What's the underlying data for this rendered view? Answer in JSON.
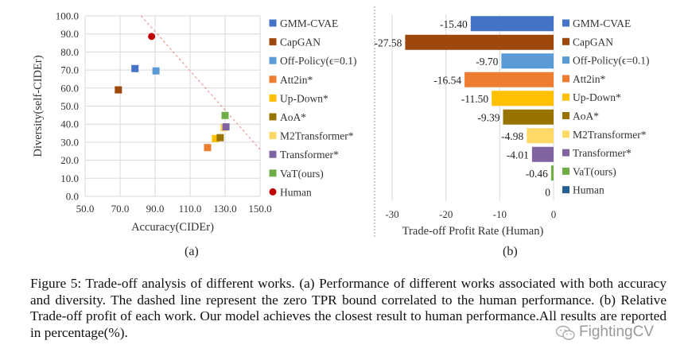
{
  "chart_data": [
    {
      "type": "scatter",
      "xlabel": "Accuracy(CIDEr)",
      "ylabel": "Diversity(self-CIDEr)",
      "xlim": [
        50,
        150
      ],
      "ylim": [
        0,
        100
      ],
      "xticks": [
        "50.0",
        "70.0",
        "90.0",
        "110.0",
        "130.0",
        "150.0"
      ],
      "yticks": [
        "0.0",
        "10.0",
        "20.0",
        "30.0",
        "40.0",
        "50.0",
        "60.0",
        "70.0",
        "80.0",
        "90.0",
        "100.0"
      ],
      "grid": true,
      "legend_position": "right",
      "zero_tpr_line": {
        "x": [
          82,
          150
        ],
        "y": [
          100,
          26
        ]
      },
      "series": [
        {
          "name": "GMM-CVAE",
          "x": 78.5,
          "y": 70.8,
          "color": "#4472C4",
          "marker": "square"
        },
        {
          "name": "CapGAN",
          "x": 69.0,
          "y": 59.0,
          "color": "#9E480E",
          "marker": "square"
        },
        {
          "name": "Off-Policy(ϵ=0.1)",
          "x": 90.5,
          "y": 69.5,
          "color": "#5B9BD5",
          "marker": "square"
        },
        {
          "name": "Att2in*",
          "x": 120.0,
          "y": 27.0,
          "color": "#ED7D31",
          "marker": "square"
        },
        {
          "name": "Up-Down*",
          "x": 124.5,
          "y": 32.0,
          "color": "#FFC000",
          "marker": "square"
        },
        {
          "name": "AoA*",
          "x": 127.2,
          "y": 32.5,
          "color": "#997300",
          "marker": "square"
        },
        {
          "name": "M2Transformer*",
          "x": 129.3,
          "y": 38.0,
          "color": "#FFD966",
          "marker": "square"
        },
        {
          "name": "Transformer*",
          "x": 130.5,
          "y": 38.5,
          "color": "#8064A2",
          "marker": "square"
        },
        {
          "name": "VaT(ours)",
          "x": 130.0,
          "y": 44.8,
          "color": "#70AD47",
          "marker": "square"
        },
        {
          "name": "Human",
          "x": 88.0,
          "y": 88.6,
          "color": "#C00000",
          "marker": "circle"
        }
      ]
    },
    {
      "type": "bar",
      "orientation": "horizontal",
      "xlabel": "Trade-off Profit Rate (Human)",
      "xlim": [
        -30,
        0
      ],
      "xticks": [
        "-30",
        "-20",
        "-10",
        "0"
      ],
      "grid": true,
      "legend_position": "right",
      "categories": [
        "GMM-CVAE",
        "CapGAN",
        "Off-Policy(ϵ=0.1)",
        "Att2in*",
        "Up-Down*",
        "AoA*",
        "M2Transformer*",
        "Transformer*",
        "VaT(ours)",
        "Human"
      ],
      "values": [
        -15.4,
        -27.58,
        -9.7,
        -16.54,
        -11.5,
        -9.39,
        -4.98,
        -4.01,
        -0.46,
        0
      ],
      "value_labels": [
        "-15.40",
        "-27.58",
        "-9.70",
        "-16.54",
        "-11.50",
        "-9.39",
        "-4.98",
        "-4.01",
        "-0.46",
        "0"
      ],
      "colors": [
        "#4472C4",
        "#9E480E",
        "#5B9BD5",
        "#ED7D31",
        "#FFC000",
        "#997300",
        "#FFD966",
        "#8064A2",
        "#70AD47",
        "#255E91"
      ]
    }
  ],
  "subplot_labels": [
    "(a)",
    "(b)"
  ],
  "caption": "Figure 5: Trade-off analysis of different works. (a) Performance of different works associated with both accuracy and diversity. The dashed line represent the zero TPR bound correlated to the human performance. (b) Relative Trade-off profit of each work. Our model achieves the closest result to human performance.All results are reported in percentage(%).",
  "watermark": "FightingCV"
}
